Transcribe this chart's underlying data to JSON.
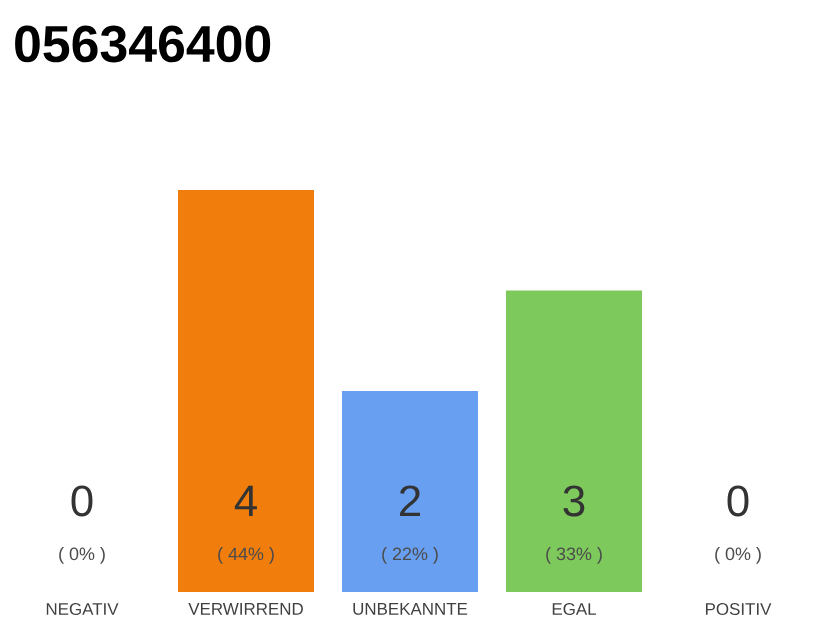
{
  "chart_data": {
    "type": "bar",
    "title": "056346400",
    "categories": [
      "NEGATIV",
      "VERWIRREND",
      "UNBEKANNTE",
      "EGAL",
      "POSITIV"
    ],
    "values": [
      0,
      4,
      2,
      3,
      0
    ],
    "colors": [
      "#9e9e9e",
      "#f07d0c",
      "#689ff0",
      "#7dc95c",
      "#9e9e9e"
    ],
    "value_labels": [
      "0",
      "4",
      "2",
      "3",
      "0"
    ],
    "annotations": [
      "( 0% )",
      "( 44% )",
      "( 22% )",
      "( 33% )",
      "( 0% )"
    ]
  }
}
